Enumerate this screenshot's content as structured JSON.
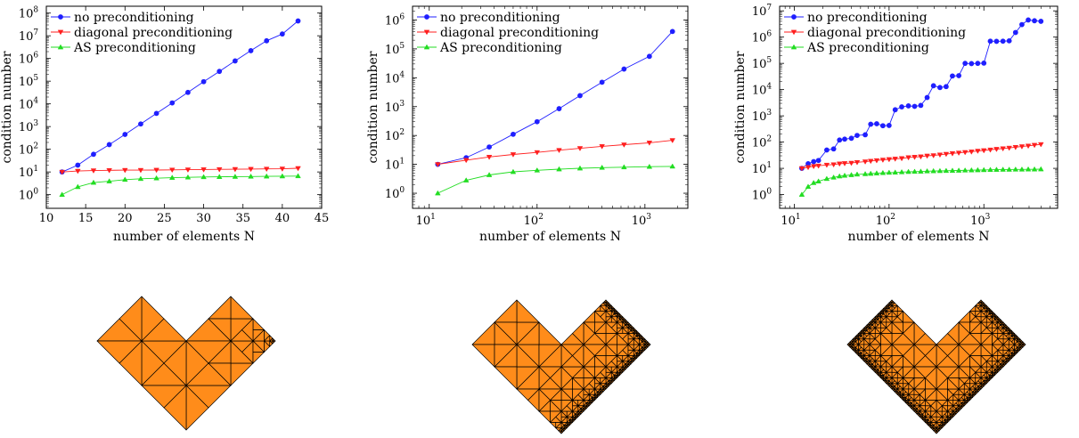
{
  "colors": {
    "none": "#1f1fff",
    "diagonal": "#ff1f1f",
    "as": "#22dd22",
    "mesh_fill": "#ff8c1a",
    "mesh_stroke": "#000000"
  },
  "chart_data": [
    {
      "type": "line",
      "title": "",
      "xlabel": "number of elements N",
      "ylabel": "condition number",
      "xscale": "linear",
      "yscale": "log",
      "xlim": [
        10,
        45
      ],
      "ylim": [
        0.25,
        200000000
      ],
      "xticks": [
        10,
        15,
        20,
        25,
        30,
        35,
        40,
        45
      ],
      "xtick_labels": [
        "10",
        "15",
        "20",
        "25",
        "30",
        "35",
        "40",
        "45"
      ],
      "yticks": [
        1,
        10,
        100,
        1000,
        10000,
        100000,
        1000000,
        10000000,
        100000000
      ],
      "ytick_exponents": [
        "0",
        "1",
        "2",
        "3",
        "4",
        "5",
        "6",
        "7",
        "8"
      ],
      "tick_base": "10",
      "legend_position": "top-left",
      "grid": false,
      "series": [
        {
          "name": "no preconditioning",
          "key": "none",
          "marker": "circle",
          "x": [
            12,
            14,
            16,
            18,
            20,
            22,
            24,
            26,
            28,
            30,
            32,
            34,
            36,
            38,
            40,
            42
          ],
          "y": [
            10,
            20,
            60,
            160,
            450,
            1300,
            3800,
            11000,
            32000,
            95000,
            270000,
            780000,
            2200000,
            6000000,
            12000000,
            45000000
          ]
        },
        {
          "name": "diagonal preconditioning",
          "key": "diagonal",
          "marker": "triangle-down",
          "x": [
            12,
            14,
            16,
            18,
            20,
            22,
            24,
            26,
            28,
            30,
            32,
            34,
            36,
            38,
            40,
            42
          ],
          "y": [
            10,
            11,
            11.5,
            11.8,
            12,
            12,
            12.2,
            12.4,
            12.6,
            12.8,
            13,
            13.2,
            13.4,
            13.6,
            13.8,
            14.5
          ]
        },
        {
          "name": "AS preconditioning",
          "key": "as",
          "marker": "triangle-up",
          "x": [
            12,
            14,
            16,
            18,
            20,
            22,
            24,
            26,
            28,
            30,
            32,
            34,
            36,
            38,
            40,
            42
          ],
          "y": [
            1,
            2.2,
            3.4,
            3.9,
            4.6,
            5,
            5.3,
            5.6,
            5.8,
            6,
            6.1,
            6.2,
            6.3,
            6.4,
            6.5,
            6.6
          ]
        }
      ]
    },
    {
      "type": "line",
      "title": "",
      "xlabel": "number of elements N",
      "ylabel": "condition number",
      "xscale": "log",
      "yscale": "log",
      "xlim": [
        7,
        2500
      ],
      "ylim": [
        0.3,
        3000000
      ],
      "xticks": [
        10,
        100,
        1000
      ],
      "xtick_exponents": [
        "1",
        "2",
        "3"
      ],
      "yticks": [
        1,
        10,
        100,
        1000,
        10000,
        100000,
        1000000
      ],
      "ytick_exponents": [
        "0",
        "1",
        "2",
        "3",
        "4",
        "5",
        "6"
      ],
      "tick_base": "10",
      "legend_position": "top-left",
      "grid": false,
      "series": [
        {
          "name": "no preconditioning",
          "key": "none",
          "marker": "circle",
          "x": [
            12,
            22,
            36,
            60,
            100,
            160,
            250,
            400,
            640,
            1100,
            1800
          ],
          "y": [
            10,
            17,
            40,
            110,
            300,
            850,
            2400,
            7000,
            20000,
            55000,
            400000
          ]
        },
        {
          "name": "diagonal preconditioning",
          "key": "diagonal",
          "marker": "triangle-down",
          "x": [
            12,
            22,
            36,
            60,
            100,
            160,
            250,
            400,
            640,
            1100,
            1800
          ],
          "y": [
            10,
            14,
            18,
            22,
            26,
            31,
            36,
            42,
            48,
            56,
            68
          ]
        },
        {
          "name": "AS preconditioning",
          "key": "as",
          "marker": "triangle-up",
          "x": [
            12,
            22,
            36,
            60,
            100,
            160,
            250,
            400,
            640,
            1100,
            1800
          ],
          "y": [
            1,
            2.8,
            4.3,
            5.5,
            6.2,
            6.8,
            7.3,
            7.7,
            8,
            8.3,
            8.5
          ]
        }
      ]
    },
    {
      "type": "line",
      "title": "",
      "xlabel": "number of elements N",
      "ylabel": "condition number",
      "xscale": "log",
      "yscale": "log",
      "xlim": [
        7,
        6000
      ],
      "ylim": [
        0.3,
        15000000
      ],
      "xticks": [
        10,
        100,
        1000
      ],
      "xtick_exponents": [
        "1",
        "2",
        "3"
      ],
      "yticks": [
        1,
        10,
        100,
        1000,
        10000,
        100000,
        1000000,
        10000000
      ],
      "ytick_exponents": [
        "0",
        "1",
        "2",
        "3",
        "4",
        "5",
        "6",
        "7"
      ],
      "tick_base": "10",
      "legend_position": "top-left",
      "grid": false,
      "series": [
        {
          "name": "no preconditioning",
          "key": "none",
          "marker": "circle",
          "x": [
            12,
            14,
            16,
            18,
            22,
            26,
            30,
            34,
            40,
            46,
            56,
            64,
            74,
            86,
            100,
            116,
            136,
            160,
            186,
            216,
            252,
            294,
            344,
            400,
            466,
            544,
            634,
            740,
            862,
            1000,
            1170,
            1360,
            1590,
            1850,
            2160,
            2520,
            2940,
            3420,
            4000
          ],
          "y": [
            10,
            15,
            18,
            20,
            50,
            55,
            120,
            130,
            140,
            180,
            190,
            480,
            500,
            420,
            430,
            1700,
            2200,
            2400,
            2300,
            2500,
            5000,
            14000,
            12000,
            13000,
            33000,
            34000,
            100000,
            98000,
            100000,
            102000,
            700000,
            690000,
            700000,
            720000,
            1500000,
            3000000,
            4500000,
            4200000,
            4000000
          ]
        },
        {
          "name": "diagonal preconditioning",
          "key": "diagonal",
          "marker": "triangle-down",
          "x": [
            12,
            14,
            16,
            18,
            22,
            26,
            30,
            34,
            40,
            46,
            56,
            64,
            74,
            86,
            100,
            116,
            136,
            160,
            186,
            216,
            252,
            294,
            344,
            400,
            466,
            544,
            634,
            740,
            862,
            1000,
            1170,
            1360,
            1590,
            1850,
            2160,
            2520,
            2940,
            3420,
            4000
          ],
          "y": [
            10,
            11,
            12,
            12.5,
            13.5,
            14,
            15,
            15.5,
            16,
            17,
            18,
            19,
            20,
            21,
            22,
            23,
            24,
            26,
            27,
            28,
            30,
            31,
            33,
            35,
            37,
            39,
            41,
            43,
            46,
            48,
            51,
            54,
            57,
            60,
            64,
            68,
            72,
            77,
            82
          ]
        },
        {
          "name": "AS preconditioning",
          "key": "as",
          "marker": "triangle-up",
          "x": [
            12,
            14,
            16,
            18,
            22,
            26,
            30,
            34,
            40,
            46,
            56,
            64,
            74,
            86,
            100,
            116,
            136,
            160,
            186,
            216,
            252,
            294,
            344,
            400,
            466,
            544,
            634,
            740,
            862,
            1000,
            1170,
            1360,
            1590,
            1850,
            2160,
            2520,
            2940,
            3420,
            4000
          ],
          "y": [
            1,
            2,
            2.8,
            3.2,
            4,
            4.5,
            5,
            5.3,
            5.6,
            5.9,
            6.1,
            6.3,
            6.5,
            6.7,
            6.9,
            7,
            7.2,
            7.4,
            7.5,
            7.6,
            7.8,
            7.9,
            8,
            8.1,
            8.2,
            8.3,
            8.4,
            8.5,
            8.6,
            8.7,
            8.8,
            8.9,
            9,
            9,
            9.1,
            9.1,
            9.2,
            9.2,
            9.3
          ]
        }
      ]
    }
  ],
  "meshes": [
    {
      "id": "uniform-refinement-mesh"
    },
    {
      "id": "diagonal-refinement-mesh"
    },
    {
      "id": "boundary-refinement-mesh"
    }
  ]
}
